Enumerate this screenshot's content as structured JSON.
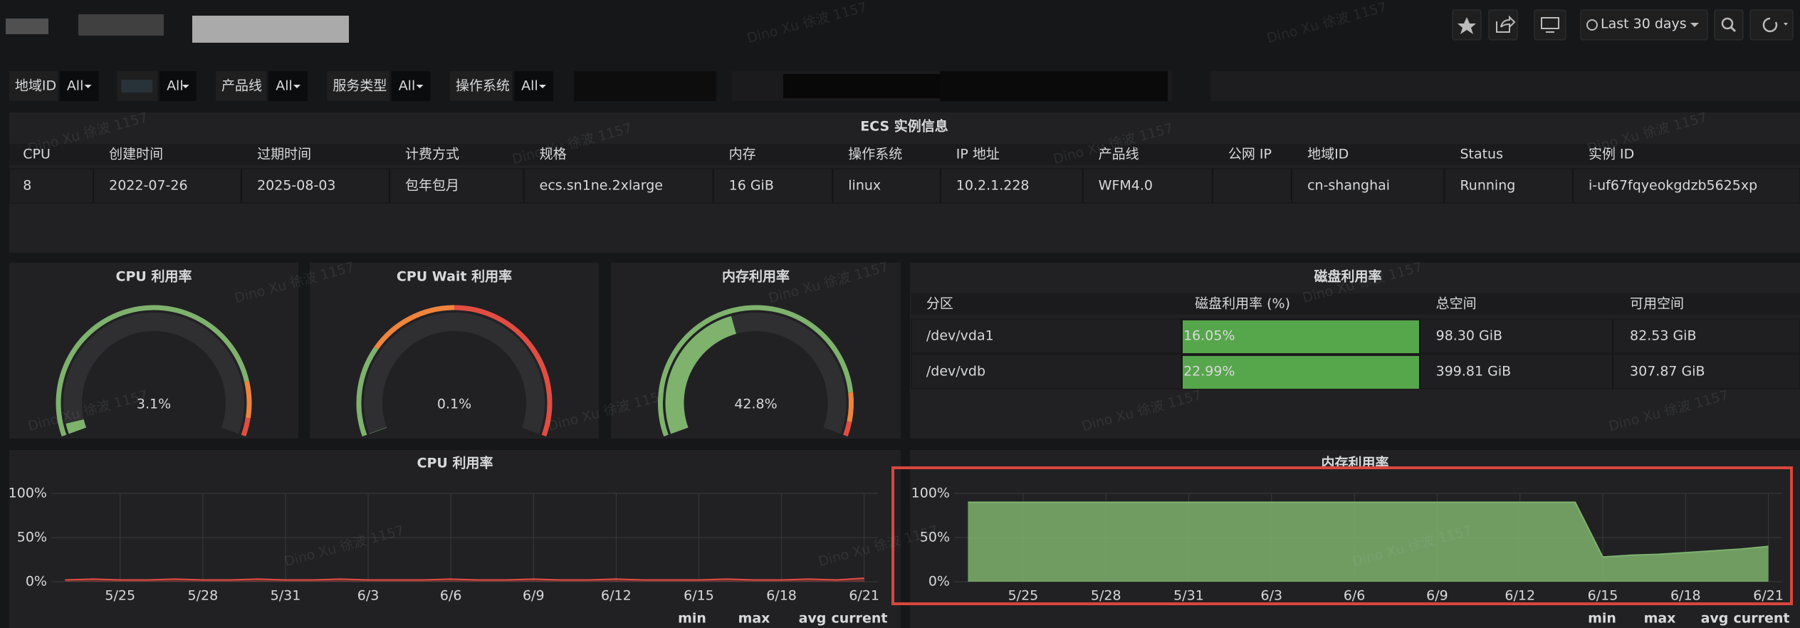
{
  "toolbar": {
    "time_range": "Last 30 days"
  },
  "filters": [
    {
      "label": "地域ID",
      "value": "All"
    },
    {
      "value": "All"
    },
    {
      "label": "产品线",
      "value": "All"
    },
    {
      "label": "服务类型",
      "value": "All"
    },
    {
      "label": "操作系统",
      "value": "All"
    }
  ],
  "ecs_table": {
    "title": "ECS 实例信息",
    "columns": [
      "CPU",
      "创建时间",
      "过期时间",
      "计费方式",
      "规格",
      "内存",
      "操作系统",
      "IP 地址",
      "产品线",
      "公网 IP",
      "地域ID",
      "Status",
      "实例 ID"
    ],
    "rows": [
      [
        "8",
        "2022-07-26",
        "2025-08-03",
        "包年包月",
        "ecs.sn1ne.2xlarge",
        "16 GiB",
        "linux",
        "10.2.1.228",
        "WFM4.0",
        null,
        "cn-shanghai",
        "Running",
        "i-uf67fqyeokgdzb5625xp"
      ]
    ]
  },
  "gauges": [
    {
      "title": "CPU 利用率",
      "value": 3.1,
      "value_label": "3.1%",
      "range": [
        0,
        100
      ],
      "color": "#7eb26d",
      "thresholds": [
        {
          "from": 0,
          "color": "#7eb26d"
        },
        {
          "from": 85,
          "color": "#ef843c"
        },
        {
          "from": 95,
          "color": "#e24d42"
        }
      ]
    },
    {
      "title": "CPU Wait 利用率",
      "value": 0.1,
      "value_label": "0.1%",
      "range": [
        0,
        100
      ],
      "color": "#7eb26d",
      "thresholds": [
        {
          "from": 0,
          "color": "#7eb26d"
        },
        {
          "from": 25,
          "color": "#ef843c"
        },
        {
          "from": 50,
          "color": "#e24d42"
        }
      ]
    },
    {
      "title": "内存利用率",
      "value": 42.8,
      "value_label": "42.8%",
      "range": [
        0,
        100
      ],
      "color": "#7eb26d",
      "thresholds": [
        {
          "from": 0,
          "color": "#7eb26d"
        },
        {
          "from": 88,
          "color": "#ef843c"
        },
        {
          "from": 96,
          "color": "#e24d42"
        }
      ]
    }
  ],
  "disk_table": {
    "title": "磁盘利用率",
    "columns": [
      "分区",
      "磁盘利用率 (%)",
      "总空间",
      "可用空间"
    ],
    "rows": [
      [
        "/dev/vda1",
        "16.05%",
        "98.30 GiB",
        "82.53 GiB"
      ],
      [
        "/dev/vdb",
        "22.99%",
        "399.81 GiB",
        "307.87 GiB"
      ]
    ]
  },
  "charts": [
    {
      "type": "line",
      "title": "CPU 利用率",
      "x": [
        "5/23",
        "5/24",
        "5/25",
        "5/26",
        "5/27",
        "5/28",
        "5/29",
        "5/30",
        "5/31",
        "6/1",
        "6/2",
        "6/3",
        "6/4",
        "6/5",
        "6/6",
        "6/7",
        "6/8",
        "6/9",
        "6/10",
        "6/11",
        "6/12",
        "6/13",
        "6/14",
        "6/15",
        "6/16",
        "6/17",
        "6/18",
        "6/19",
        "6/20",
        "6/21"
      ],
      "series": [
        {
          "name": "CPU 利用率",
          "color": "#e24d42",
          "values": [
            2,
            3,
            2,
            2,
            3,
            2,
            2,
            3,
            2,
            2,
            3,
            2,
            2,
            2,
            3,
            2,
            2,
            3,
            2,
            2,
            3,
            2,
            2,
            2,
            3,
            2,
            2,
            3,
            2,
            4
          ]
        }
      ],
      "xticks": [
        "5/25",
        "5/28",
        "5/31",
        "6/3",
        "6/6",
        "6/9",
        "6/12",
        "6/15",
        "6/18",
        "6/21"
      ],
      "ylim": [
        0,
        100
      ],
      "yticks": [
        {
          "value": 0,
          "label": "0%"
        },
        {
          "value": 50,
          "label": "50%"
        },
        {
          "value": 100,
          "label": "100%"
        }
      ],
      "grid": true,
      "legend_columns": [
        "min",
        "max",
        "avg",
        "current"
      ]
    },
    {
      "type": "area",
      "title": "内存利用率",
      "x": [
        "5/23",
        "5/24",
        "5/25",
        "5/26",
        "5/27",
        "5/28",
        "5/29",
        "5/30",
        "5/31",
        "6/1",
        "6/2",
        "6/3",
        "6/4",
        "6/5",
        "6/6",
        "6/7",
        "6/8",
        "6/9",
        "6/10",
        "6/11",
        "6/12",
        "6/13",
        "6/14",
        "6/15",
        "6/16",
        "6/17",
        "6/18",
        "6/19",
        "6/20",
        "6/21"
      ],
      "series": [
        {
          "name": "内存利用率",
          "color": "#7eb26d",
          "values": [
            90,
            90,
            90,
            90,
            90,
            90,
            90,
            90,
            90,
            90,
            90,
            90,
            90,
            90,
            90,
            90,
            90,
            90,
            90,
            90,
            90,
            90,
            90,
            28,
            30,
            31,
            33,
            35,
            37,
            40
          ]
        }
      ],
      "xticks": [
        "5/25",
        "5/28",
        "5/31",
        "6/3",
        "6/6",
        "6/9",
        "6/12",
        "6/15",
        "6/18",
        "6/21"
      ],
      "ylim": [
        0,
        100
      ],
      "yticks": [
        {
          "value": 0,
          "label": "0%"
        },
        {
          "value": 50,
          "label": "50%"
        },
        {
          "value": 100,
          "label": "100%"
        }
      ],
      "grid": true,
      "legend_columns": [
        "min",
        "max",
        "avg",
        "current"
      ]
    }
  ],
  "watermark": "Dino Xu 徐波 1157"
}
